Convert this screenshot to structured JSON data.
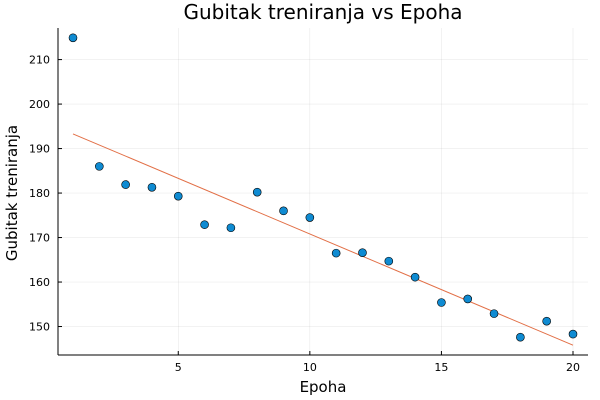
{
  "chart_data": {
    "type": "scatter",
    "title": "Gubitak treniranja vs Epoha",
    "xlabel": "Epoha",
    "ylabel": "Gubitak treniranja",
    "xlim": [
      0.43,
      20.57
    ],
    "ylim": [
      143.6,
      217.1
    ],
    "xticks": [
      5,
      10,
      15,
      20
    ],
    "yticks": [
      150,
      160,
      170,
      180,
      190,
      200,
      210
    ],
    "grid": true,
    "legend": "none",
    "series": [
      {
        "type": "scatter",
        "x": [
          1,
          2,
          3,
          4,
          5,
          6,
          7,
          8,
          9,
          10,
          11,
          12,
          13,
          14,
          15,
          16,
          17,
          18,
          19,
          20
        ],
        "y": [
          214.9,
          186.0,
          181.9,
          181.3,
          179.3,
          172.9,
          172.2,
          180.2,
          176.0,
          174.5,
          166.5,
          166.6,
          164.7,
          161.1,
          155.4,
          156.2,
          152.9,
          147.6,
          151.2,
          148.3
        ],
        "color": "#0f8bd2"
      },
      {
        "type": "line",
        "x": [
          1,
          20
        ],
        "y": [
          193.3,
          145.8
        ],
        "color": "#e26f46"
      }
    ]
  }
}
